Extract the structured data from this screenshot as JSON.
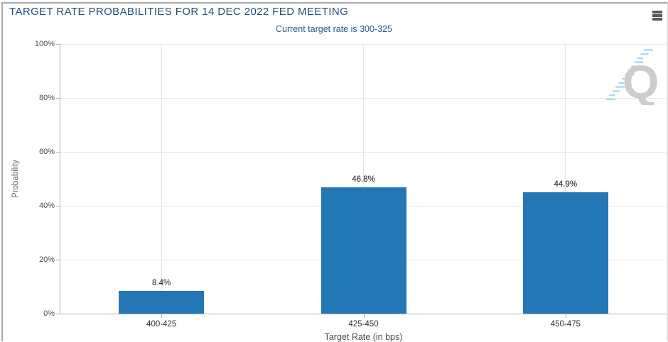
{
  "widget": {
    "menu_icon": "hamburger-icon"
  },
  "watermark": {
    "letter": "Q"
  },
  "colors": {
    "title_text": "#1f4e79",
    "subtitle_text": "#2a5a87",
    "bar": "#2277b4",
    "axis_line": "#b0b0b0",
    "gridline": "#e6e6e6",
    "menu_icon": "#58595b",
    "watermark_gray": "#cccccc",
    "watermark_blue": "#a7d6ef"
  },
  "chart_data": {
    "type": "bar",
    "title": "TARGET RATE PROBABILITIES FOR 14 DEC 2022 FED MEETING",
    "subtitle": "Current target rate is 300-325",
    "xlabel": "Target Rate (in bps)",
    "ylabel": "Probability",
    "categories": [
      "400-425",
      "425-450",
      "450-475"
    ],
    "values": [
      8.4,
      46.8,
      44.9
    ],
    "value_labels": [
      "8.4%",
      "46.8%",
      "44.9%"
    ],
    "y_tick_values": [
      0,
      20,
      40,
      60,
      80,
      100
    ],
    "y_tick_labels": [
      "0%",
      "20%",
      "40%",
      "60%",
      "80%",
      "100%"
    ],
    "ylim": [
      0,
      100
    ],
    "grid": true,
    "legend": "none",
    "bar_color": "#2277b4"
  }
}
